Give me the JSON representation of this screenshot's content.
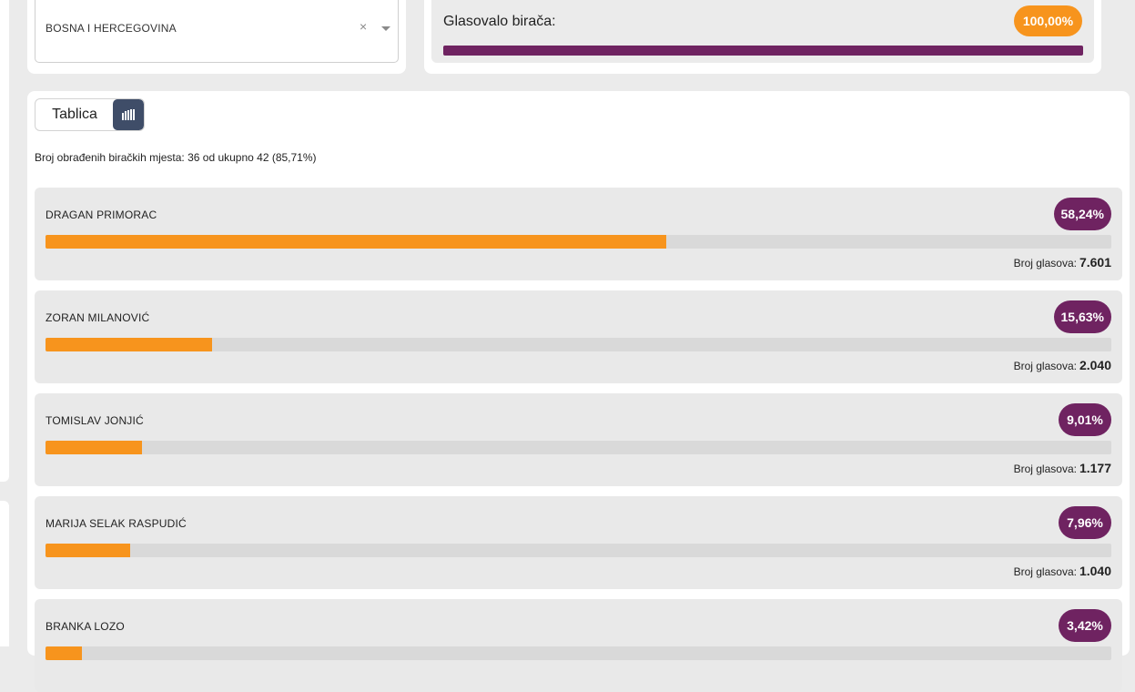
{
  "region_select": {
    "value": "BOSNA I HERCEGOVINA",
    "clear_glyph": "×"
  },
  "turnout": {
    "label": "Glasovalo birača:",
    "value": "100,00%",
    "fraction": 1.0
  },
  "view_toggle": {
    "table_label": "Tablica",
    "chart_icon": "bar-chart-icon"
  },
  "processed_text": "Broj obrađenih biračkih mjesta: 36 od ukupno 42 (85,71%)",
  "votes_label": "Broj glasova:",
  "candidates": [
    {
      "name": "DRAGAN PRIMORAC",
      "percent": "58,24%",
      "fraction": 0.5824,
      "votes": "7.601"
    },
    {
      "name": "ZORAN MILANOVIĆ",
      "percent": "15,63%",
      "fraction": 0.1563,
      "votes": "2.040"
    },
    {
      "name": "TOMISLAV JONJIĆ",
      "percent": "9,01%",
      "fraction": 0.0901,
      "votes": "1.177"
    },
    {
      "name": "MARIJA SELAK RASPUDIĆ",
      "percent": "7,96%",
      "fraction": 0.0796,
      "votes": "1.040"
    },
    {
      "name": "BRANKA LOZO",
      "percent": "3,42%",
      "fraction": 0.0342,
      "votes": ""
    }
  ],
  "colors": {
    "accent_orange": "#f7941d",
    "accent_purple": "#6f2361",
    "toggle_active": "#3f4d68"
  }
}
